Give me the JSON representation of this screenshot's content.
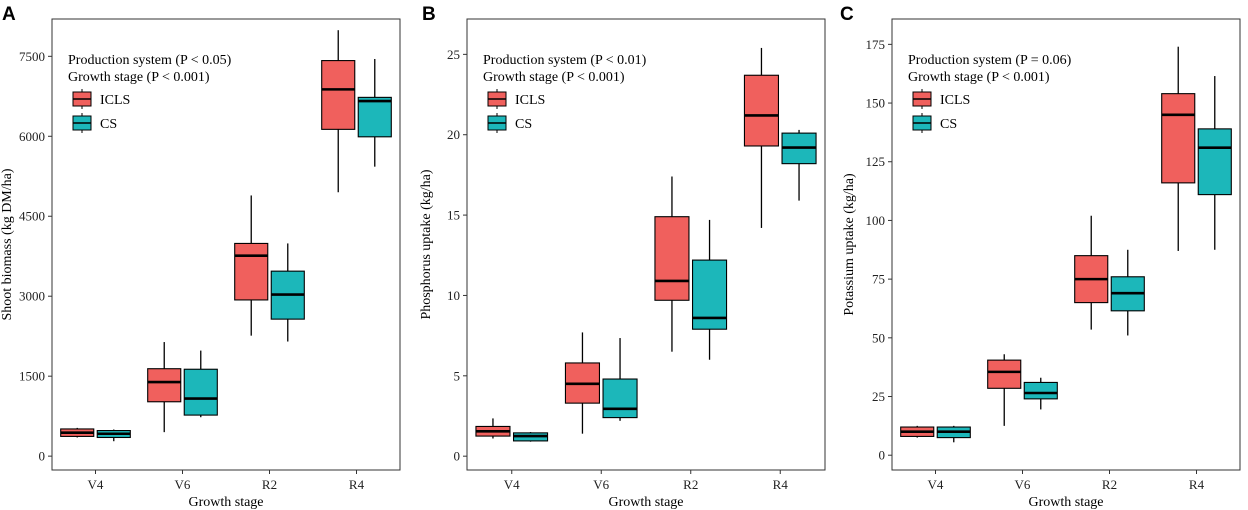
{
  "colors": {
    "ICLS": "#f0605d",
    "CS": "#1cb7ba"
  },
  "chart_data": [
    {
      "type": "box",
      "panel": "A",
      "xlabel": "Growth stage",
      "ylabel": "Shoot biomass (kg DM/ha)",
      "ylim": [
        -260,
        8200
      ],
      "yticks": [
        0,
        1500,
        3000,
        4500,
        6000,
        7500
      ],
      "categories": [
        "V4",
        "V6",
        "R2",
        "R4"
      ],
      "annotations": [
        "Production system (P < 0.05)",
        "Growth stage (P < 0.001)"
      ],
      "series": [
        {
          "name": "ICLS",
          "boxes": [
            {
              "min": 350,
              "q1": 370,
              "median": 440,
              "q3": 510,
              "max": 530
            },
            {
              "min": 450,
              "q1": 1020,
              "median": 1390,
              "q3": 1640,
              "max": 2140
            },
            {
              "min": 2260,
              "q1": 2930,
              "median": 3760,
              "q3": 3990,
              "max": 4890
            },
            {
              "min": 4950,
              "q1": 6130,
              "median": 6880,
              "q3": 7420,
              "max": 7990
            }
          ]
        },
        {
          "name": "CS",
          "boxes": [
            {
              "min": 280,
              "q1": 350,
              "median": 420,
              "q3": 480,
              "max": 500
            },
            {
              "min": 730,
              "q1": 770,
              "median": 1080,
              "q3": 1630,
              "max": 1980
            },
            {
              "min": 2150,
              "q1": 2570,
              "median": 3030,
              "q3": 3470,
              "max": 3990
            },
            {
              "min": 5430,
              "q1": 5990,
              "median": 6660,
              "q3": 6730,
              "max": 7450
            }
          ]
        }
      ]
    },
    {
      "type": "box",
      "panel": "B",
      "xlabel": "Growth stage",
      "ylabel": "Phosphorus uptake (kg/ha)",
      "ylim": [
        -0.86,
        27.2
      ],
      "yticks": [
        0,
        5,
        10,
        15,
        20,
        25
      ],
      "categories": [
        "V4",
        "V6",
        "R2",
        "R4"
      ],
      "annotations": [
        "Production system (P < 0.01)",
        "Growth stage (P < 0.001)"
      ],
      "series": [
        {
          "name": "ICLS",
          "boxes": [
            {
              "min": 1.1,
              "q1": 1.25,
              "median": 1.55,
              "q3": 1.85,
              "max": 2.35
            },
            {
              "min": 1.4,
              "q1": 3.3,
              "median": 4.5,
              "q3": 5.8,
              "max": 7.7
            },
            {
              "min": 6.5,
              "q1": 9.7,
              "median": 10.9,
              "q3": 14.9,
              "max": 17.4
            },
            {
              "min": 14.2,
              "q1": 19.3,
              "median": 21.2,
              "q3": 23.7,
              "max": 25.4
            }
          ]
        },
        {
          "name": "CS",
          "boxes": [
            {
              "min": 0.9,
              "q1": 0.95,
              "median": 1.25,
              "q3": 1.45,
              "max": 1.5
            },
            {
              "min": 2.2,
              "q1": 2.4,
              "median": 2.95,
              "q3": 4.8,
              "max": 7.35
            },
            {
              "min": 6.0,
              "q1": 7.9,
              "median": 8.6,
              "q3": 12.2,
              "max": 14.7
            },
            {
              "min": 15.9,
              "q1": 18.2,
              "median": 19.2,
              "q3": 20.1,
              "max": 20.3
            }
          ]
        }
      ]
    },
    {
      "type": "box",
      "panel": "C",
      "xlabel": "Growth stage",
      "ylabel": "Potassium uptake (kg/ha)",
      "ylim": [
        -6.3,
        185.8
      ],
      "yticks": [
        0,
        25,
        50,
        75,
        100,
        125,
        150,
        175
      ],
      "categories": [
        "V4",
        "V6",
        "R2",
        "R4"
      ],
      "annotations": [
        "Production system (P = 0.06)",
        "Growth stage (P < 0.001)"
      ],
      "series": [
        {
          "name": "ICLS",
          "boxes": [
            {
              "min": 7.5,
              "q1": 8,
              "median": 10,
              "q3": 12,
              "max": 12.5
            },
            {
              "min": 12.5,
              "q1": 28.5,
              "median": 35.5,
              "q3": 40.5,
              "max": 43
            },
            {
              "min": 53.5,
              "q1": 65,
              "median": 75,
              "q3": 85,
              "max": 102
            },
            {
              "min": 87,
              "q1": 116,
              "median": 145,
              "q3": 154,
              "max": 174
            }
          ]
        },
        {
          "name": "CS",
          "boxes": [
            {
              "min": 5.5,
              "q1": 7.5,
              "median": 10,
              "q3": 12,
              "max": 12.5
            },
            {
              "min": 19.5,
              "q1": 24,
              "median": 26.5,
              "q3": 31,
              "max": 33
            },
            {
              "min": 51,
              "q1": 61.5,
              "median": 69,
              "q3": 76,
              "max": 87.5
            },
            {
              "min": 87.5,
              "q1": 111,
              "median": 131,
              "q3": 139,
              "max": 161.5
            }
          ]
        }
      ]
    }
  ]
}
